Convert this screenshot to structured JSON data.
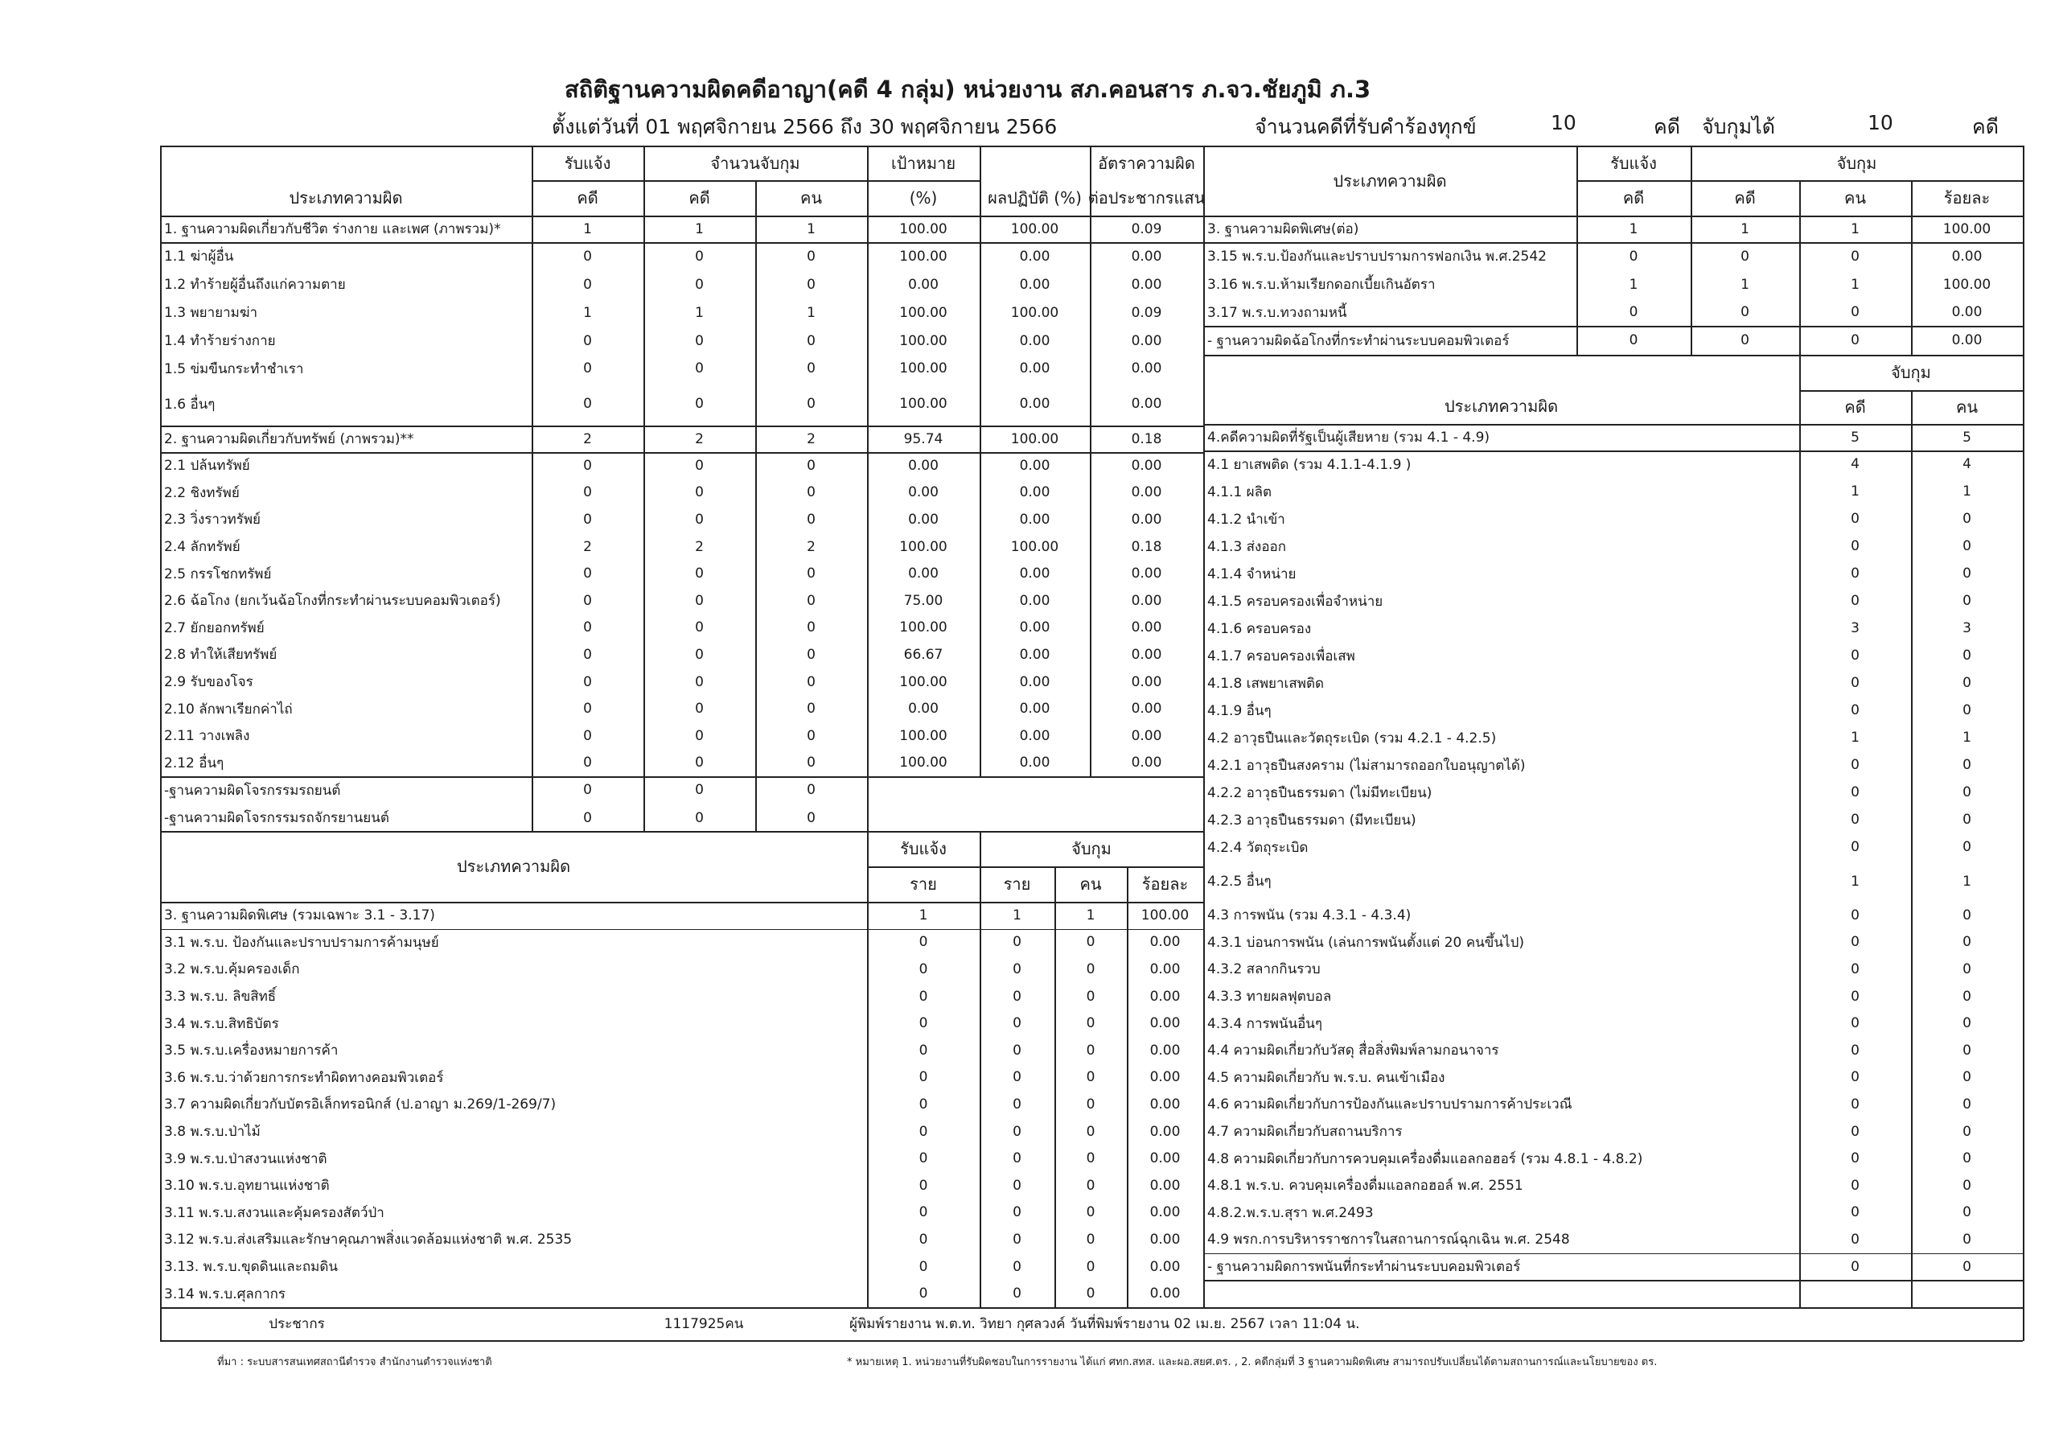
{
  "header": {
    "title": "สถิติฐานความผิดคดีอาญา(คดี 4 กลุ่ม) หน่วยงาน สภ.คอนสาร ภ.จว.ชัยภูมิ ภ.3",
    "period": "ตั้งแต่วันที่ 01 พฤศจิกายน 2566 ถึง 30 พฤศจิกายน 2566",
    "complaints_label": "จำนวนคดีที่รับคำร้องทุกข์",
    "complaints_value": "10",
    "unit_case": "คดี",
    "arrested_label": "จับกุมได้",
    "arrested_value": "10",
    "unit_case2": "คดี"
  },
  "table_a": {
    "head": {
      "name": "ประเภทความผิด",
      "reported": "รับแจ้ง",
      "arrests": "จำนวนจับกุม",
      "target": "เป้าหมาย",
      "rate": "อัตราความผิด",
      "cases": "คดี",
      "cases2": "คดี",
      "persons": "คน",
      "pct": "(%)",
      "result": "ผลปฏิบัติ (%)",
      "per100k": "ต่อประชากรแสน"
    },
    "rows": [
      [
        "1. ฐานความผิดเกี่ยวกับชีวิต ร่างกาย และเพศ (ภาพรวม)*",
        "1",
        "1",
        "1",
        "100.00",
        "100.00",
        "0.09"
      ],
      [
        "1.1 ฆ่าผู้อื่น",
        "0",
        "0",
        "0",
        "100.00",
        "0.00",
        "0.00"
      ],
      [
        "1.2 ทำร้ายผู้อื่นถึงแก่ความตาย",
        "0",
        "0",
        "0",
        "0.00",
        "0.00",
        "0.00"
      ],
      [
        "1.3 พยายามฆ่า",
        "1",
        "1",
        "1",
        "100.00",
        "100.00",
        "0.09"
      ],
      [
        "1.4 ทำร้ายร่างกาย",
        "0",
        "0",
        "0",
        "100.00",
        "0.00",
        "0.00"
      ],
      [
        "1.5 ข่มขืนกระทำชำเรา",
        "0",
        "0",
        "0",
        "100.00",
        "0.00",
        "0.00"
      ],
      [
        "1.6 อื่นๆ",
        "0",
        "0",
        "0",
        "100.00",
        "0.00",
        "0.00"
      ],
      [
        "2. ฐานความผิดเกี่ยวกับทรัพย์ (ภาพรวม)**",
        "2",
        "2",
        "2",
        "95.74",
        "100.00",
        "0.18"
      ],
      [
        "2.1 ปล้นทรัพย์",
        "0",
        "0",
        "0",
        "0.00",
        "0.00",
        "0.00"
      ],
      [
        "2.2 ชิงทรัพย์",
        "0",
        "0",
        "0",
        "0.00",
        "0.00",
        "0.00"
      ],
      [
        "2.3 วิ่งราวทรัพย์",
        "0",
        "0",
        "0",
        "0.00",
        "0.00",
        "0.00"
      ],
      [
        "2.4 ลักทรัพย์",
        "2",
        "2",
        "2",
        "100.00",
        "100.00",
        "0.18"
      ],
      [
        "2.5 กรรโชกทรัพย์",
        "0",
        "0",
        "0",
        "0.00",
        "0.00",
        "0.00"
      ],
      [
        "2.6 ฉ้อโกง (ยกเว้นฉ้อโกงที่กระทำผ่านระบบคอมพิวเตอร์)",
        "0",
        "0",
        "0",
        "75.00",
        "0.00",
        "0.00"
      ],
      [
        "2.7 ยักยอกทรัพย์",
        "0",
        "0",
        "0",
        "100.00",
        "0.00",
        "0.00"
      ],
      [
        "2.8 ทำให้เสียทรัพย์",
        "0",
        "0",
        "0",
        "66.67",
        "0.00",
        "0.00"
      ],
      [
        "2.9 รับของโจร",
        "0",
        "0",
        "0",
        "100.00",
        "0.00",
        "0.00"
      ],
      [
        "2.10 ลักพาเรียกค่าไถ่",
        "0",
        "0",
        "0",
        "0.00",
        "0.00",
        "0.00"
      ],
      [
        "2.11 วางเพลิง",
        "0",
        "0",
        "0",
        "100.00",
        "0.00",
        "0.00"
      ],
      [
        "2.12 อื่นๆ",
        "0",
        "0",
        "0",
        "100.00",
        "0.00",
        "0.00"
      ],
      [
        "-ฐานความผิดโจรกรรมรถยนต์",
        "0",
        "0",
        "0",
        "",
        "",
        ""
      ],
      [
        "-ฐานความผิดโจรกรรมรถจักรยานยนต์",
        "0",
        "0",
        "0",
        "",
        "",
        ""
      ]
    ]
  },
  "table_b": {
    "head": {
      "name": "ประเภทความผิด",
      "reported": "รับแจ้ง",
      "arrests": "จับกุม",
      "r1": "ราย",
      "r2": "ราย",
      "persons": "คน",
      "pct": "ร้อยละ"
    },
    "rows": [
      [
        "3. ฐานความผิดพิเศษ (รวมเฉพาะ 3.1 - 3.17)",
        "1",
        "1",
        "1",
        "100.00"
      ],
      [
        "3.1 พ.ร.บ. ป้องกันและปราบปรามการค้ามนุษย์",
        "0",
        "0",
        "0",
        "0.00"
      ],
      [
        "3.2 พ.ร.บ.คุ้มครองเด็ก",
        "0",
        "0",
        "0",
        "0.00"
      ],
      [
        "3.3 พ.ร.บ. ลิขสิทธิ์",
        "0",
        "0",
        "0",
        "0.00"
      ],
      [
        "3.4 พ.ร.บ.สิทธิบัตร",
        "0",
        "0",
        "0",
        "0.00"
      ],
      [
        "3.5 พ.ร.บ.เครื่องหมายการค้า",
        "0",
        "0",
        "0",
        "0.00"
      ],
      [
        "3.6 พ.ร.บ.ว่าด้วยการกระทำผิดทางคอมพิวเตอร์",
        "0",
        "0",
        "0",
        "0.00"
      ],
      [
        "3.7 ความผิดเกี่ยวกับบัตรอิเล็กทรอนิกส์ (ป.อาญา ม.269/1-269/7)",
        "0",
        "0",
        "0",
        "0.00"
      ],
      [
        "3.8 พ.ร.บ.ป่าไม้",
        "0",
        "0",
        "0",
        "0.00"
      ],
      [
        "3.9 พ.ร.บ.ป่าสงวนแห่งชาติ",
        "0",
        "0",
        "0",
        "0.00"
      ],
      [
        "3.10 พ.ร.บ.อุทยานแห่งชาติ",
        "0",
        "0",
        "0",
        "0.00"
      ],
      [
        "3.11 พ.ร.บ.สงวนและคุ้มครองสัตว์ป่า",
        "0",
        "0",
        "0",
        "0.00"
      ],
      [
        "3.12 พ.ร.บ.ส่งเสริมและรักษาคุณภาพสิ่งแวดล้อมแห่งชาติ พ.ศ. 2535",
        "0",
        "0",
        "0",
        "0.00"
      ],
      [
        "3.13. พ.ร.บ.ขุดดินและถมดิน",
        "0",
        "0",
        "0",
        "0.00"
      ],
      [
        "3.14 พ.ร.บ.ศุลกากร",
        "0",
        "0",
        "0",
        "0.00"
      ]
    ]
  },
  "table_c": {
    "head": {
      "name": "ประเภทความผิด",
      "reported": "รับแจ้ง",
      "arrests": "จับกุม",
      "cases": "คดี",
      "cases2": "คดี",
      "persons": "คน",
      "pct": "ร้อยละ"
    },
    "rows": [
      [
        "3. ฐานความผิดพิเศษ(ต่อ)",
        "1",
        "1",
        "1",
        "100.00"
      ],
      [
        "3.15 พ.ร.บ.ป้องกันและปราบปรามการฟอกเงิน พ.ศ.2542",
        "0",
        "0",
        "0",
        "0.00"
      ],
      [
        "3.16 พ.ร.บ.ห้ามเรียกดอกเบี้ยเกินอัตรา",
        "1",
        "1",
        "1",
        "100.00"
      ],
      [
        "3.17 พ.ร.บ.ทวงถามหนี้",
        "0",
        "0",
        "0",
        "0.00"
      ],
      [
        "- ฐานความผิดฉ้อโกงที่กระทำผ่านระบบคอมพิวเตอร์",
        "0",
        "0",
        "0",
        "0.00"
      ]
    ]
  },
  "table_d": {
    "head": {
      "name": "ประเภทความผิด",
      "arrests": "จับกุม",
      "cases": "คดี",
      "persons": "คน"
    },
    "rows": [
      [
        "4.คดีความผิดที่รัฐเป็นผู้เสียหาย (รวม 4.1 - 4.9)",
        "5",
        "5"
      ],
      [
        "4.1 ยาเสพติด (รวม 4.1.1-4.1.9 )",
        "4",
        "4"
      ],
      [
        "4.1.1 ผลิต",
        "1",
        "1"
      ],
      [
        "4.1.2 นำเข้า",
        "0",
        "0"
      ],
      [
        "4.1.3 ส่งออก",
        "0",
        "0"
      ],
      [
        "4.1.4 จำหน่าย",
        "0",
        "0"
      ],
      [
        "4.1.5 ครอบครองเพื่อจำหน่าย",
        "0",
        "0"
      ],
      [
        "4.1.6 ครอบครอง",
        "3",
        "3"
      ],
      [
        "4.1.7 ครอบครองเพื่อเสพ",
        "0",
        "0"
      ],
      [
        "4.1.8 เสพยาเสพติด",
        "0",
        "0"
      ],
      [
        "4.1.9 อื่นๆ",
        "0",
        "0"
      ],
      [
        "4.2 อาวุธปืนและวัตถุระเบิด (รวม 4.2.1 - 4.2.5)",
        "1",
        "1"
      ],
      [
        "4.2.1 อาวุธปืนสงคราม (ไม่สามารถออกใบอนุญาตได้)",
        "0",
        "0"
      ],
      [
        "4.2.2 อาวุธปืนธรรมดา (ไม่มีทะเบียน)",
        "0",
        "0"
      ],
      [
        "4.2.3 อาวุธปืนธรรมดา (มีทะเบียน)",
        "0",
        "0"
      ],
      [
        "4.2.4 วัตถุระเบิด",
        "0",
        "0"
      ],
      [
        "4.2.5 อื่นๆ",
        "1",
        "1"
      ],
      [
        "4.3 การพนัน (รวม 4.3.1 - 4.3.4)",
        "0",
        "0"
      ],
      [
        "4.3.1 บ่อนการพนัน (เล่นการพนันตั้งแต่ 20 คนขึ้นไป)",
        "0",
        "0"
      ],
      [
        "4.3.2 สลากกินรวบ",
        "0",
        "0"
      ],
      [
        "4.3.3 ทายผลฟุตบอล",
        "0",
        "0"
      ],
      [
        "4.3.4 การพนันอื่นๆ",
        "0",
        "0"
      ],
      [
        "4.4 ความผิดเกี่ยวกับวัสดุ สื่อสิ่งพิมพ์ลามกอนาจาร",
        "0",
        "0"
      ],
      [
        "4.5 ความผิดเกี่ยวกับ พ.ร.บ. คนเข้าเมือง",
        "0",
        "0"
      ],
      [
        "4.6 ความผิดเกี่ยวกับการป้องกันและปราบปรามการค้าประเวณี",
        "0",
        "0"
      ],
      [
        "4.7 ความผิดเกี่ยวกับสถานบริการ",
        "0",
        "0"
      ],
      [
        "4.8 ความผิดเกี่ยวกับการควบคุมเครื่องดื่มแอลกอฮอร์ (รวม 4.8.1 - 4.8.2)",
        "0",
        "0"
      ],
      [
        "4.8.1 พ.ร.บ. ควบคุมเครื่องดื่มแอลกอฮอล์ พ.ศ. 2551",
        "0",
        "0"
      ],
      [
        "4.8.2.พ.ร.บ.สุรา พ.ศ.2493",
        "0",
        "0"
      ],
      [
        "4.9 พรก.การบริหารราชการในสถานการณ์ฉุกเฉิน พ.ศ. 2548",
        "0",
        "0"
      ],
      [
        "- ฐานความผิดการพนันที่กระทำผ่านระบบคอมพิวเตอร์",
        "0",
        "0"
      ],
      [
        "",
        "",
        ""
      ]
    ]
  },
  "footer": {
    "population_label": "ประชากร",
    "population_value": "1117925คน",
    "reporter": "ผู้พิมพ์รายงาน พ.ต.ท. วิทยา กุศลวงค์ วันที่พิมพ์รายงาน 02 เม.ย. 2567  เวลา 11:04 น.",
    "source": "ที่มา : ระบบสารสนเทศสถานีตำรวจ  สำนักงานตำรวจแห่งชาติ",
    "remark": "* หมายเหตุ   1. หน่วยงานที่รับผิดชอบในการรายงาน ได้แก่ ศทก.สทส. และผอ.สยศ.ตร. , 2. คดีกลุ่มที่ 3 ฐานความผิดพิเศษ สามารถปรับเปลี่ยนได้ตามสถานการณ์และนโยบายของ ตร."
  }
}
